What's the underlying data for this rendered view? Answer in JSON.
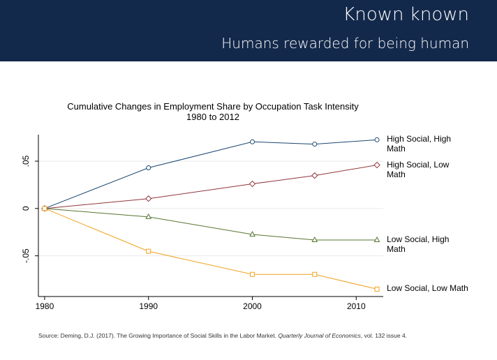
{
  "header": {
    "title": "Known known",
    "subtitle": "Humans rewarded for being human"
  },
  "chart_data": {
    "type": "line",
    "title": [
      "Cumulative Changes in Employment Share by Occupation Task Intensity",
      "1980 to 2012"
    ],
    "x": [
      1980,
      1990,
      2000,
      2006,
      2012
    ],
    "series": [
      {
        "name": "High Social, High Math",
        "color": "#1a476f",
        "marker": "circle",
        "values": [
          0,
          0.043,
          0.0704,
          0.068,
          0.0726
        ]
      },
      {
        "name": "High Social, Low Math",
        "color": "#90353b",
        "marker": "diamond",
        "values": [
          0,
          0.0104,
          0.026,
          0.0348,
          0.0459
        ]
      },
      {
        "name": "Low Social, High Math",
        "color": "#55752f",
        "marker": "triangle",
        "values": [
          0,
          -0.0089,
          -0.0274,
          -0.0333,
          -0.0333
        ]
      },
      {
        "name": "Low Social, Low Math",
        "color": "#f2a01f",
        "marker": "square",
        "values": [
          0,
          -0.0452,
          -0.0696,
          -0.0696,
          -0.0852
        ]
      }
    ],
    "xlim": [
      1979.4,
      2012.6
    ],
    "xticks": [
      1980,
      1990,
      2000,
      2010
    ],
    "ylim": [
      -0.093,
      0.078
    ],
    "yticks": [
      {
        "value": -0.05,
        "label": "-.05"
      },
      0,
      {
        "value": 0.05,
        "label": ".05"
      }
    ],
    "grid": true
  },
  "source": [
    "Source: Deming, D.J. (2017). The Growing Importance of Social Skills in the Labor Market. ",
    "Quarterly Journal of Economics",
    ", vol. 132 issue 4."
  ]
}
